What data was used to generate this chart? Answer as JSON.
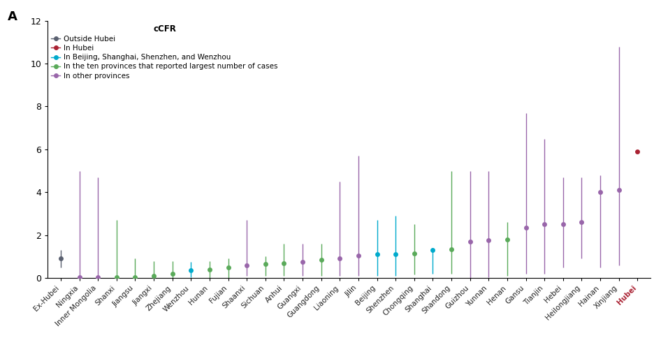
{
  "panel_label": "A",
  "ylim": [
    0,
    12
  ],
  "yticks": [
    0,
    2,
    4,
    6,
    8,
    10,
    12
  ],
  "background_color": "#ffffff",
  "categories": [
    "Ex-Hubei",
    "Ningxia",
    "Inner Mongolia",
    "Shanxi",
    "Jiangsu",
    "Jiangxi",
    "Zhejiang",
    "Wenzhou",
    "Hunan",
    "Fujian",
    "Shaanxi",
    "Sichuan",
    "Anhui",
    "Guangxi",
    "Guangdong",
    "Liaoning",
    "Jilin",
    "Beijing",
    "Shenzhen",
    "Chongqing",
    "Shanghai",
    "Shandong",
    "Guizhou",
    "Yunnan",
    "Henan",
    "Gansu",
    "Tianjin",
    "Hebei",
    "Heilongjiang",
    "Hainan",
    "Xinjiang",
    "Hubei"
  ],
  "values": [
    0.9,
    0.05,
    0.05,
    0.05,
    0.05,
    0.1,
    0.2,
    0.35,
    0.4,
    0.5,
    0.6,
    0.65,
    0.7,
    0.75,
    0.85,
    0.9,
    1.05,
    1.1,
    1.1,
    1.15,
    1.3,
    1.35,
    1.7,
    1.75,
    1.8,
    2.35,
    2.5,
    2.5,
    2.6,
    4.0,
    4.1,
    5.9
  ],
  "ci_low": [
    0.5,
    0.0,
    0.0,
    0.0,
    0.0,
    0.0,
    0.0,
    0.05,
    0.0,
    0.0,
    0.1,
    0.1,
    0.1,
    0.1,
    0.1,
    0.1,
    0.1,
    0.1,
    0.1,
    0.15,
    0.2,
    0.2,
    0.0,
    0.05,
    0.1,
    0.2,
    0.2,
    0.5,
    0.9,
    0.5,
    0.6,
    5.85
  ],
  "ci_high": [
    1.3,
    5.0,
    4.7,
    2.7,
    0.9,
    0.8,
    0.8,
    0.75,
    0.8,
    0.9,
    2.7,
    1.0,
    1.6,
    1.6,
    1.6,
    4.5,
    5.7,
    2.7,
    2.9,
    2.5,
    1.4,
    5.0,
    5.0,
    5.0,
    2.6,
    7.7,
    6.5,
    4.7,
    4.7,
    4.8,
    10.8,
    5.95
  ],
  "colors": [
    "#5a6070",
    "#9966aa",
    "#9966aa",
    "#5aaa5a",
    "#5aaa5a",
    "#5aaa5a",
    "#5aaa5a",
    "#00aacc",
    "#5aaa5a",
    "#5aaa5a",
    "#9966aa",
    "#5aaa5a",
    "#5aaa5a",
    "#9966aa",
    "#5aaa5a",
    "#9966aa",
    "#9966aa",
    "#00aacc",
    "#00aacc",
    "#5aaa5a",
    "#00aacc",
    "#5aaa5a",
    "#9966aa",
    "#9966aa",
    "#5aaa5a",
    "#9966aa",
    "#9966aa",
    "#9966aa",
    "#9966aa",
    "#9966aa",
    "#9966aa",
    "#aa2233"
  ],
  "legend_labels": [
    "Outside Hubei",
    "In Hubei",
    "In Beijing, Shanghai, Shenzhen, and Wenzhou",
    "In the ten provinces that reported largest number of cases",
    "In other provinces"
  ],
  "legend_colors": [
    "#5a6070",
    "#aa2233",
    "#00aacc",
    "#5aaa5a",
    "#9966aa"
  ],
  "legend_title": "cCFR",
  "hubei_label_color": "#aa2233"
}
